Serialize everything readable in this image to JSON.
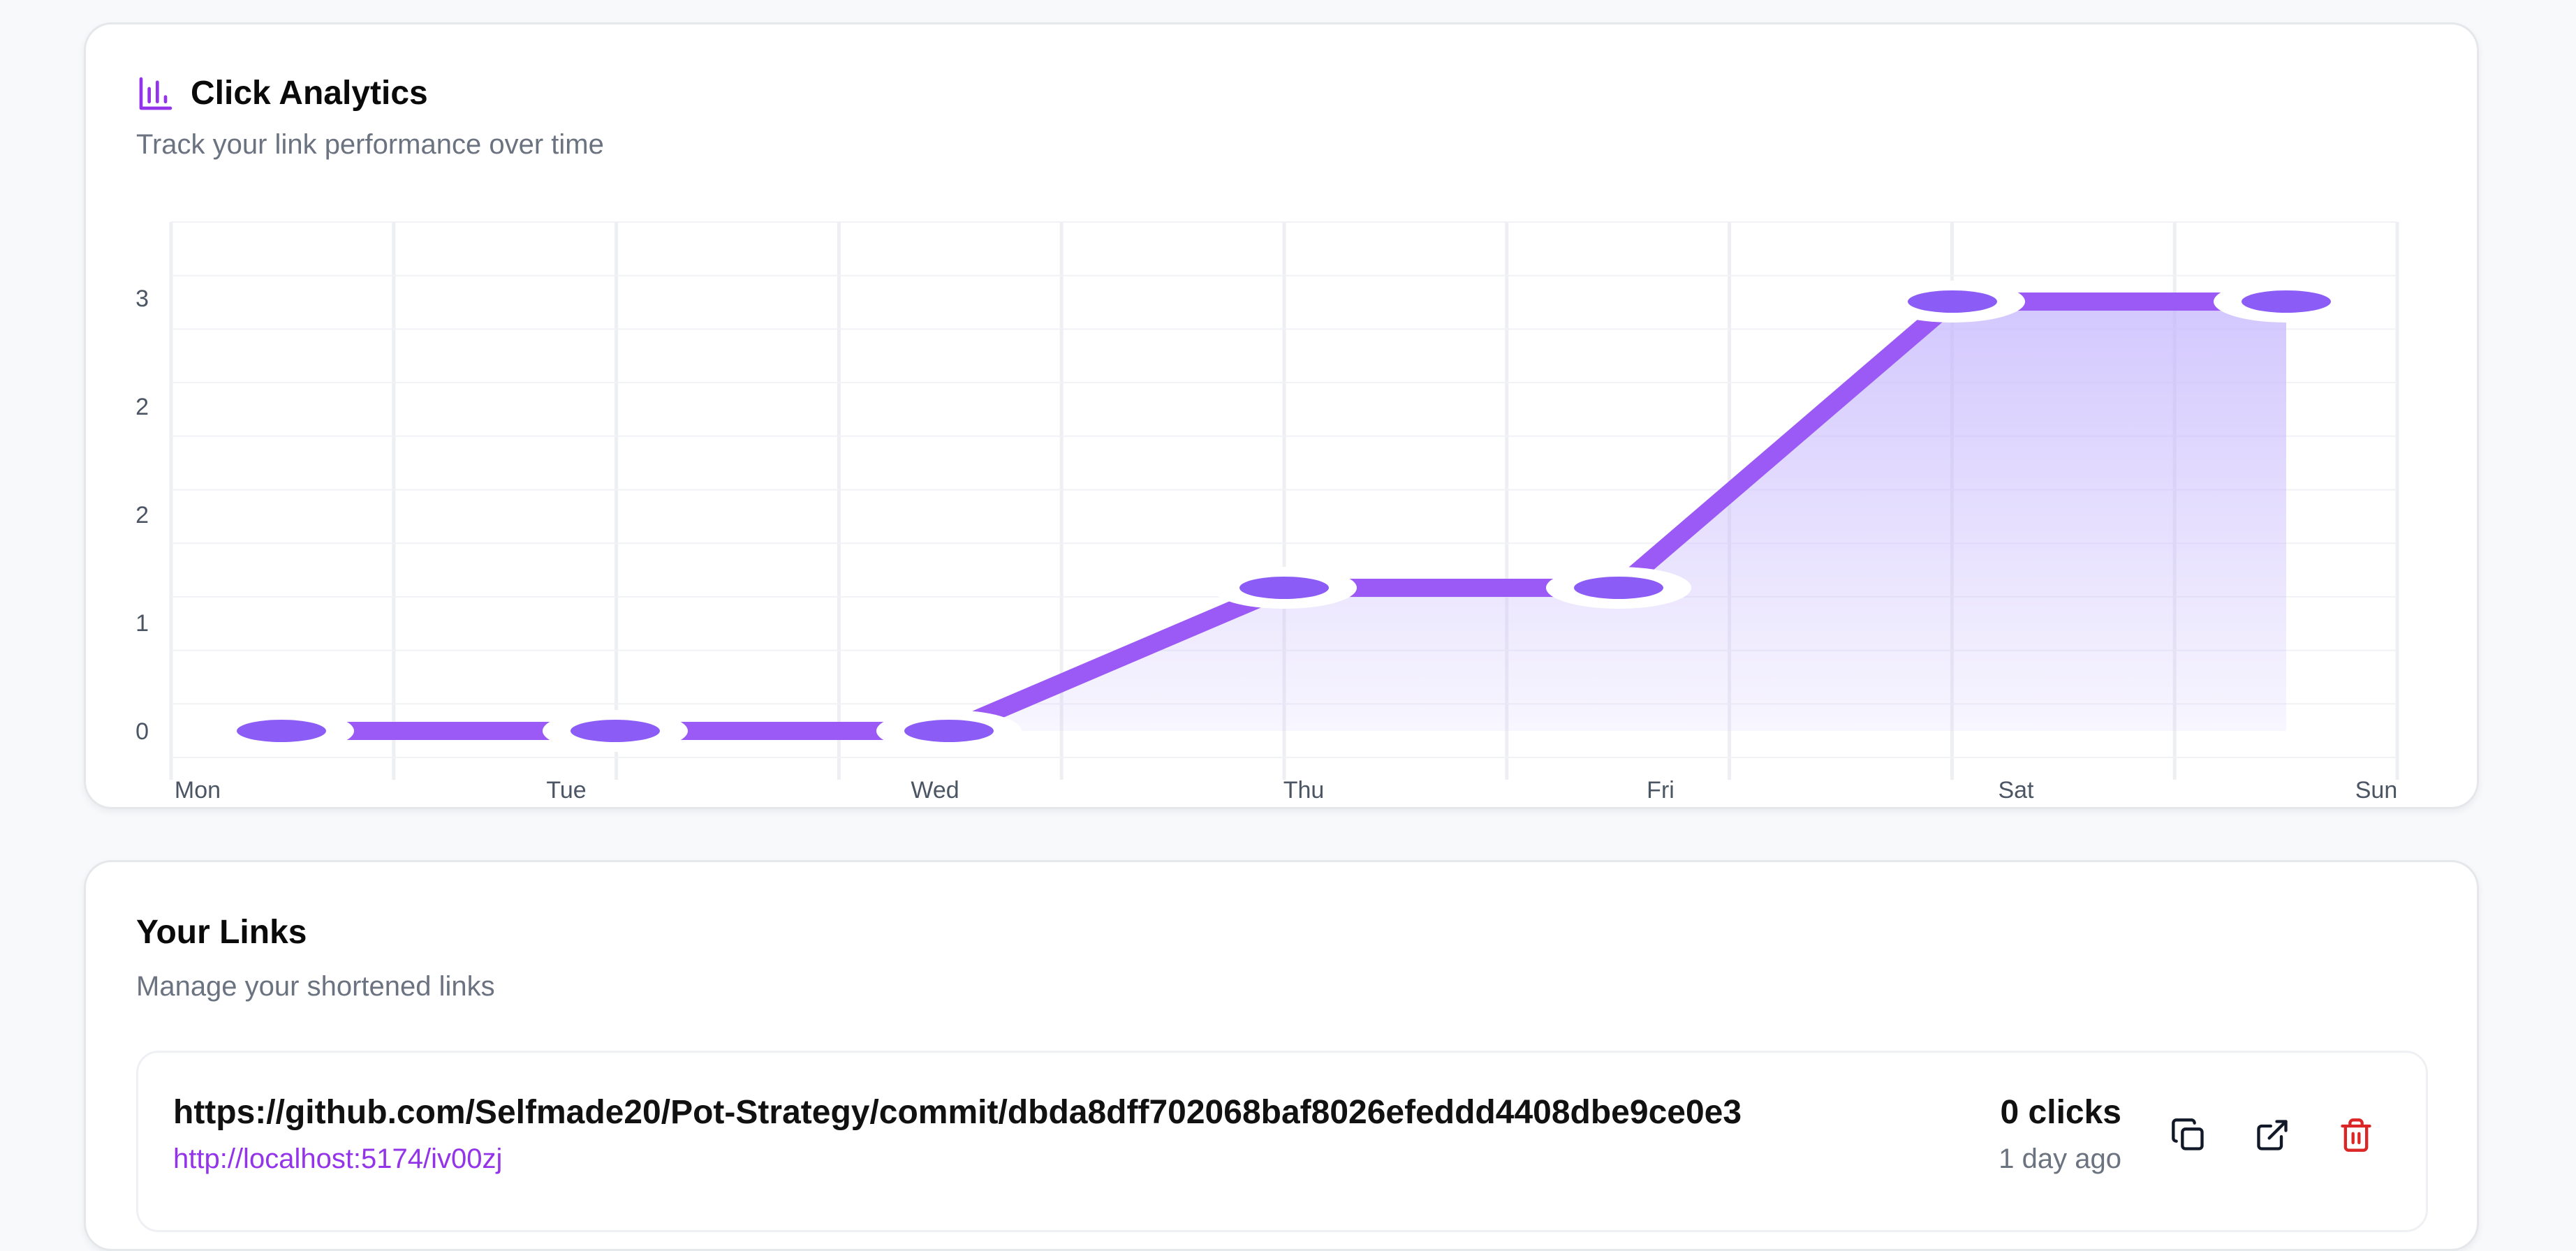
{
  "analytics": {
    "title": "Click Analytics",
    "subtitle": "Track your link performance over time",
    "icon": "bar-chart-icon",
    "accent_color": "#9333ea"
  },
  "chart_data": {
    "type": "area",
    "x": [
      "Mon",
      "Tue",
      "Wed",
      "Thu",
      "Fri",
      "Sat",
      "Sun"
    ],
    "series": [
      {
        "values": [
          0,
          0,
          0,
          1,
          1,
          3,
          3
        ]
      }
    ],
    "x_tick_labels": [
      "Mon",
      "Tue",
      "Wed",
      "Thu",
      "Fri",
      "Sat",
      "Sun"
    ],
    "y_tick_labels": [
      "0",
      "1",
      "2",
      "2",
      "3"
    ],
    "ylim": [
      -0.2,
      3.2
    ],
    "grid": true,
    "line_color": "#9b59f5",
    "fill_color": "#c4b5fd"
  },
  "links": {
    "title": "Your Links",
    "subtitle": "Manage your shortened links",
    "items": [
      {
        "original_url": "https://github.com/Selfmade20/Pot-Strategy/commit/dbda8dff702068baf8026efeddd4408dbe9ce0e3",
        "short_url": "http://localhost:5174/iv00zj",
        "clicks": "0 clicks",
        "age": "1 day ago",
        "actions": {
          "copy_icon": "copy-icon",
          "open_icon": "external-link-icon",
          "delete_icon": "trash-icon",
          "delete_color": "#dc2626"
        }
      }
    ]
  }
}
